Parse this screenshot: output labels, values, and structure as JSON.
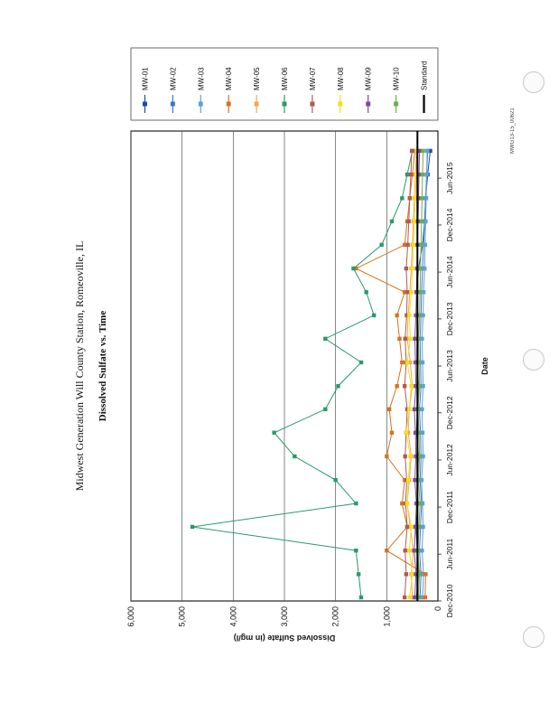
{
  "page_stamp": "MWG13-15_00621",
  "chart_data": {
    "type": "line",
    "title": "Midwest Generation Will County Station, Romeoville, IL",
    "subtitle": "Dissolved Sulfate vs. Time",
    "xlabel": "Date",
    "ylabel": "Dissolved Sulfate (in mg/l)",
    "ylim": [
      0,
      6000
    ],
    "yticks": [
      0,
      1000,
      2000,
      3000,
      4000,
      5000,
      6000
    ],
    "ytick_labels": [
      "0",
      "1,000",
      "2,000",
      "3,000",
      "4,000",
      "5,000",
      "6,000"
    ],
    "xlim": [
      "2010-12-01",
      "2015-12-01"
    ],
    "xticks": [
      "2010-12-01",
      "2011-06-01",
      "2011-12-01",
      "2012-06-01",
      "2012-12-01",
      "2013-06-01",
      "2013-12-01",
      "2014-06-01",
      "2014-12-01",
      "2015-06-01"
    ],
    "xtick_labels": [
      "Dec-2010",
      "Jun-2011",
      "Dec-2011",
      "Jun-2012",
      "Dec-2012",
      "Jun-2013",
      "Dec-2013",
      "Jun-2014",
      "Dec-2014",
      "Jun-2015"
    ],
    "grid": true,
    "legend_position": "right",
    "series": [
      {
        "name": "MW-01",
        "color": "#1f4e9c",
        "x": [
          "2010-12-15",
          "2011-03-15",
          "2011-06-15",
          "2011-09-15",
          "2011-12-15",
          "2012-03-15",
          "2012-06-15",
          "2012-09-15",
          "2012-12-15",
          "2013-03-15",
          "2013-06-15",
          "2013-09-15",
          "2013-12-15",
          "2014-03-15",
          "2014-06-15",
          "2014-09-15",
          "2014-12-15",
          "2015-03-15",
          "2015-06-15",
          "2015-09-15"
        ],
        "y": [
          420,
          380,
          400,
          430,
          390,
          410,
          380,
          420,
          400,
          380,
          410,
          390,
          400,
          420,
          380,
          300,
          260,
          240,
          200,
          150
        ]
      },
      {
        "name": "MW-02",
        "color": "#3c78c8",
        "x": [
          "2010-12-15",
          "2011-03-15",
          "2011-06-15",
          "2011-09-15",
          "2011-12-15",
          "2012-03-15",
          "2012-06-15",
          "2012-09-15",
          "2012-12-15",
          "2013-03-15",
          "2013-06-15",
          "2013-09-15",
          "2013-12-15",
          "2014-03-15",
          "2014-06-15",
          "2014-09-15",
          "2014-12-15",
          "2015-03-15",
          "2015-06-15",
          "2015-09-15"
        ],
        "y": [
          350,
          330,
          360,
          340,
          320,
          350,
          330,
          340,
          360,
          330,
          340,
          350,
          330,
          320,
          300,
          280,
          260,
          240,
          220,
          200
        ]
      },
      {
        "name": "MW-03",
        "color": "#5fa0d8",
        "x": [
          "2010-12-15",
          "2011-03-15",
          "2011-06-15",
          "2011-09-15",
          "2011-12-15",
          "2012-03-15",
          "2012-06-15",
          "2012-09-15",
          "2012-12-15",
          "2013-03-15",
          "2013-06-15",
          "2013-09-15",
          "2013-12-15",
          "2014-03-15",
          "2014-06-15",
          "2014-09-15",
          "2014-12-15",
          "2015-03-15",
          "2015-06-15",
          "2015-09-15"
        ],
        "y": [
          300,
          280,
          310,
          290,
          300,
          320,
          290,
          300,
          310,
          290,
          300,
          310,
          290,
          280,
          260,
          250,
          240,
          230,
          220,
          210
        ]
      },
      {
        "name": "MW-04",
        "color": "#d9731c",
        "x": [
          "2010-12-15",
          "2011-03-15",
          "2011-06-15",
          "2011-09-15",
          "2011-12-15",
          "2012-03-15",
          "2012-06-15",
          "2012-09-15",
          "2012-12-15",
          "2013-03-15",
          "2013-06-15",
          "2013-09-15",
          "2013-12-15",
          "2014-03-15",
          "2014-06-15",
          "2014-09-15",
          "2014-12-15",
          "2015-03-15",
          "2015-06-15",
          "2015-09-15"
        ],
        "y": [
          250,
          240,
          1000,
          600,
          700,
          650,
          1000,
          900,
          950,
          800,
          700,
          750,
          800,
          650,
          1600,
          650,
          600,
          550,
          500,
          450
        ]
      },
      {
        "name": "MW-05",
        "color": "#f0a850",
        "x": [
          "2010-12-15",
          "2011-03-15",
          "2011-06-15",
          "2011-09-15",
          "2011-12-15",
          "2012-03-15",
          "2012-06-15",
          "2012-09-15",
          "2012-12-15",
          "2013-03-15",
          "2013-06-15",
          "2013-09-15",
          "2013-12-15",
          "2014-03-15",
          "2014-06-15",
          "2014-09-15",
          "2014-12-15",
          "2015-03-15",
          "2015-06-15",
          "2015-09-15"
        ],
        "y": [
          500,
          520,
          480,
          540,
          600,
          560,
          520,
          580,
          560,
          500,
          540,
          600,
          580,
          550,
          520,
          500,
          480,
          460,
          440,
          420
        ]
      },
      {
        "name": "MW-06",
        "color": "#2a9a6a",
        "x": [
          "2010-12-15",
          "2011-03-15",
          "2011-06-15",
          "2011-09-15",
          "2011-12-15",
          "2012-03-15",
          "2012-06-15",
          "2012-09-15",
          "2012-12-15",
          "2013-03-15",
          "2013-06-15",
          "2013-09-15",
          "2013-12-15",
          "2014-03-15",
          "2014-06-15",
          "2014-09-15",
          "2014-12-15",
          "2015-03-15",
          "2015-06-15",
          "2015-09-15"
        ],
        "y": [
          1500,
          1550,
          1600,
          4800,
          1600,
          2000,
          2800,
          3200,
          2200,
          1950,
          1500,
          2200,
          1250,
          1400,
          1650,
          1100,
          900,
          700,
          600,
          500
        ]
      },
      {
        "name": "MW-07",
        "color": "#b05a50",
        "x": [
          "2010-12-15",
          "2011-03-15",
          "2011-06-15",
          "2011-09-15",
          "2011-12-15",
          "2012-03-15",
          "2012-06-15",
          "2012-09-15",
          "2012-12-15",
          "2013-03-15",
          "2013-06-15",
          "2013-09-15",
          "2013-12-15",
          "2014-03-15",
          "2014-06-15",
          "2014-09-15",
          "2014-12-15",
          "2015-03-15",
          "2015-06-15",
          "2015-09-15"
        ],
        "y": [
          650,
          620,
          640,
          600,
          630,
          610,
          640,
          620,
          600,
          650,
          620,
          640,
          610,
          600,
          620,
          590,
          570,
          550,
          530,
          510
        ]
      },
      {
        "name": "MW-08",
        "color": "#f2e018",
        "x": [
          "2010-12-15",
          "2011-03-15",
          "2011-06-15",
          "2011-09-15",
          "2011-12-15",
          "2012-03-15",
          "2012-06-15",
          "2012-09-15",
          "2012-12-15",
          "2013-03-15",
          "2013-06-15",
          "2013-09-15",
          "2013-12-15",
          "2014-03-15",
          "2014-06-15",
          "2014-09-15",
          "2014-12-15",
          "2015-03-15",
          "2015-06-15",
          "2015-09-15"
        ],
        "y": [
          550,
          500,
          560,
          520,
          600,
          580,
          540,
          620,
          560,
          520,
          600,
          540,
          560,
          520,
          500,
          480,
          460,
          440,
          420,
          400
        ]
      },
      {
        "name": "MW-09",
        "color": "#7a4a9a",
        "x": [
          "2010-12-15",
          "2011-03-15",
          "2011-06-15",
          "2011-09-15",
          "2011-12-15",
          "2012-03-15",
          "2012-06-15",
          "2012-09-15",
          "2012-12-15",
          "2013-03-15",
          "2013-06-15",
          "2013-09-15",
          "2013-12-15",
          "2014-03-15",
          "2014-06-15",
          "2014-09-15",
          "2014-12-15",
          "2015-03-15",
          "2015-06-15",
          "2015-09-15"
        ],
        "y": [
          450,
          430,
          460,
          440,
          420,
          450,
          430,
          440,
          460,
          430,
          440,
          450,
          430,
          420,
          410,
          400,
          390,
          380,
          370,
          360
        ]
      },
      {
        "name": "MW-10",
        "color": "#6ab04c",
        "x": [
          "2010-12-15",
          "2011-03-15",
          "2011-06-15",
          "2011-09-15",
          "2011-12-15",
          "2012-03-15",
          "2012-06-15",
          "2012-09-15",
          "2012-12-15",
          "2013-03-15",
          "2013-06-15",
          "2013-09-15",
          "2013-12-15",
          "2014-03-15",
          "2014-06-15",
          "2014-09-15",
          "2014-12-15",
          "2015-03-15",
          "2015-06-15",
          "2015-09-15"
        ],
        "y": [
          380,
          360,
          390,
          370,
          350,
          380,
          360,
          370,
          390,
          360,
          370,
          380,
          360,
          350,
          340,
          330,
          320,
          310,
          300,
          290
        ]
      },
      {
        "name": "Standard",
        "color": "#000000",
        "x": [
          "2010-12-01",
          "2015-12-01"
        ],
        "y": [
          400,
          400
        ]
      }
    ]
  }
}
